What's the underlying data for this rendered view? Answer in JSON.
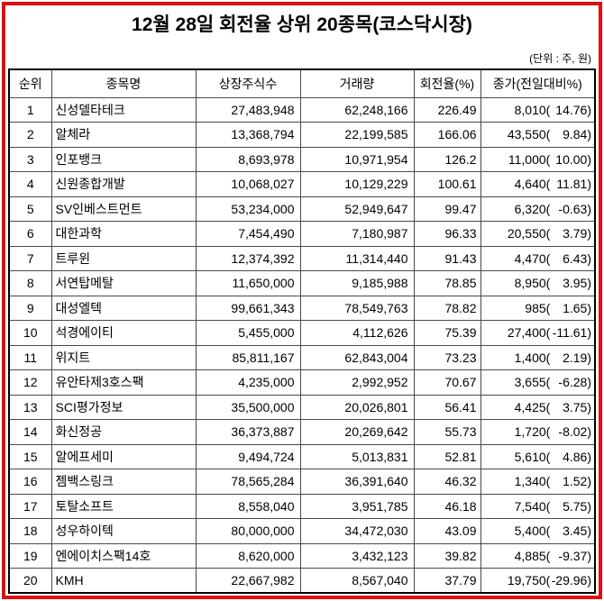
{
  "colors": {
    "frame_border": "#dd1111",
    "table_outer_border": "#000000",
    "table_grid": "#4a4a4a",
    "text": "#000000",
    "background": "#ffffff"
  },
  "chart_data": {
    "type": "table",
    "title": "12월 28일 회전율 상위 20종목(코스닥시장)",
    "unit": "(단위 : 주, 원)",
    "columns": [
      "순위",
      "종목명",
      "상장주식수",
      "거래량",
      "회전율(%)",
      "종가(전일대비%)"
    ],
    "rows": [
      {
        "rank": "1",
        "name": "신성델타테크",
        "shares": "27,483,948",
        "volume": "62,248,166",
        "turnover": "226.49",
        "close": "8,010",
        "change": "14.76"
      },
      {
        "rank": "2",
        "name": "알체라",
        "shares": "13,368,794",
        "volume": "22,199,585",
        "turnover": "166.06",
        "close": "43,550",
        "change": "9.84"
      },
      {
        "rank": "3",
        "name": "인포뱅크",
        "shares": "8,693,978",
        "volume": "10,971,954",
        "turnover": "126.2",
        "close": "11,000",
        "change": "10.00"
      },
      {
        "rank": "4",
        "name": "신원종합개발",
        "shares": "10,068,027",
        "volume": "10,129,229",
        "turnover": "100.61",
        "close": "4,640",
        "change": "11.81"
      },
      {
        "rank": "5",
        "name": "SV인베스트먼트",
        "shares": "53,234,000",
        "volume": "52,949,647",
        "turnover": "99.47",
        "close": "6,320",
        "change": "-0.63"
      },
      {
        "rank": "6",
        "name": "대한과학",
        "shares": "7,454,490",
        "volume": "7,180,987",
        "turnover": "96.33",
        "close": "20,550",
        "change": "3.79"
      },
      {
        "rank": "7",
        "name": "트루윈",
        "shares": "12,374,392",
        "volume": "11,314,440",
        "turnover": "91.43",
        "close": "4,470",
        "change": "6.43"
      },
      {
        "rank": "8",
        "name": "서연탑메탈",
        "shares": "11,650,000",
        "volume": "9,185,988",
        "turnover": "78.85",
        "close": "8,950",
        "change": "3.95"
      },
      {
        "rank": "9",
        "name": "대성엘텍",
        "shares": "99,661,343",
        "volume": "78,549,763",
        "turnover": "78.82",
        "close": "985",
        "change": "1.65"
      },
      {
        "rank": "10",
        "name": "석경에이티",
        "shares": "5,455,000",
        "volume": "4,112,626",
        "turnover": "75.39",
        "close": "27,400",
        "change": "-11.61"
      },
      {
        "rank": "11",
        "name": "위지트",
        "shares": "85,811,167",
        "volume": "62,843,004",
        "turnover": "73.23",
        "close": "1,400",
        "change": "2.19"
      },
      {
        "rank": "12",
        "name": "유안타제3호스팩",
        "shares": "4,235,000",
        "volume": "2,992,952",
        "turnover": "70.67",
        "close": "3,655",
        "change": "-6.28"
      },
      {
        "rank": "13",
        "name": "SCI평가정보",
        "shares": "35,500,000",
        "volume": "20,026,801",
        "turnover": "56.41",
        "close": "4,425",
        "change": "3.75"
      },
      {
        "rank": "14",
        "name": "화신정공",
        "shares": "36,373,887",
        "volume": "20,269,642",
        "turnover": "55.73",
        "close": "1,720",
        "change": "-8.02"
      },
      {
        "rank": "15",
        "name": "알에프세미",
        "shares": "9,494,724",
        "volume": "5,013,831",
        "turnover": "52.81",
        "close": "5,610",
        "change": "4.86"
      },
      {
        "rank": "16",
        "name": "젬백스링크",
        "shares": "78,565,284",
        "volume": "36,391,640",
        "turnover": "46.32",
        "close": "1,340",
        "change": "1.52"
      },
      {
        "rank": "17",
        "name": "토탈소프트",
        "shares": "8,558,040",
        "volume": "3,951,785",
        "turnover": "46.18",
        "close": "7,540",
        "change": "5.75"
      },
      {
        "rank": "18",
        "name": "성우하이텍",
        "shares": "80,000,000",
        "volume": "34,472,030",
        "turnover": "43.09",
        "close": "5,400",
        "change": "3.45"
      },
      {
        "rank": "19",
        "name": "엔에이치스팩14호",
        "shares": "8,620,000",
        "volume": "3,432,123",
        "turnover": "39.82",
        "close": "4,885",
        "change": "-9.37"
      },
      {
        "rank": "20",
        "name": "KMH",
        "shares": "22,667,982",
        "volume": "8,567,040",
        "turnover": "37.79",
        "close": "19,750",
        "change": "-29.96"
      }
    ]
  }
}
